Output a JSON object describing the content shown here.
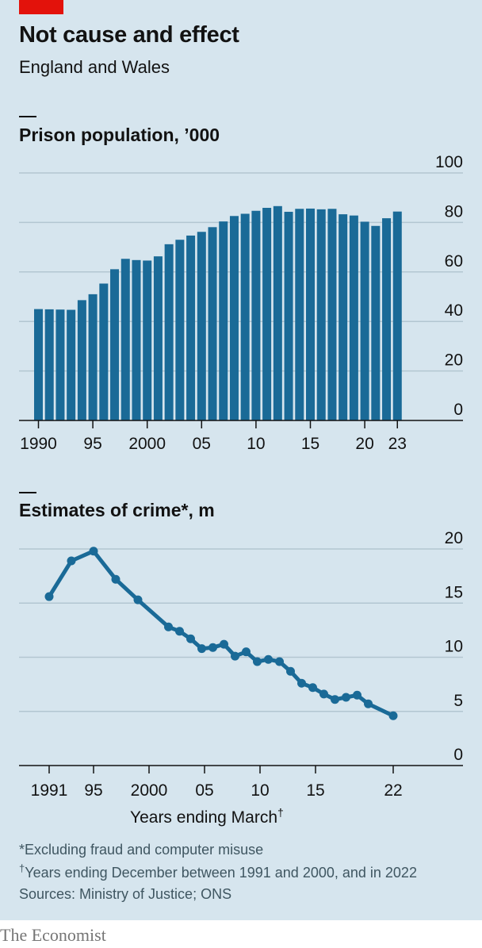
{
  "header": {
    "title": "Not cause and effect",
    "subtitle": "England and Wales"
  },
  "chart_data": [
    {
      "type": "bar",
      "title": "Prison population, ’000",
      "x": [
        1990,
        1991,
        1992,
        1993,
        1994,
        1995,
        1996,
        1997,
        1998,
        1999,
        2000,
        2001,
        2002,
        2003,
        2004,
        2005,
        2006,
        2007,
        2008,
        2009,
        2010,
        2011,
        2012,
        2013,
        2014,
        2015,
        2016,
        2017,
        2018,
        2019,
        2020,
        2021,
        2022,
        2023
      ],
      "values": [
        45.0,
        44.9,
        44.8,
        44.7,
        48.6,
        51.0,
        55.3,
        61.1,
        65.3,
        64.8,
        64.6,
        66.3,
        71.2,
        73.0,
        74.7,
        76.2,
        78.1,
        80.4,
        82.6,
        83.5,
        84.7,
        85.9,
        86.6,
        84.3,
        85.5,
        85.6,
        85.3,
        85.5,
        83.3,
        82.8,
        80.3,
        78.6,
        81.7,
        84.4
      ],
      "tick_labels": [
        "1990",
        "95",
        "2000",
        "05",
        "10",
        "15",
        "20",
        "23"
      ],
      "tick_years": [
        1990,
        1995,
        2000,
        2005,
        2010,
        2015,
        2020,
        2023
      ],
      "y_ticks": [
        "0",
        "20",
        "40",
        "60",
        "80",
        "100"
      ],
      "ylim": [
        0,
        100
      ],
      "grid": true,
      "bar_color": "#1a6a97"
    },
    {
      "type": "line",
      "title": "Estimates of crime*, m",
      "x": [
        1991,
        1993,
        1995,
        1997,
        1999,
        2001.75,
        2002.75,
        2003.75,
        2004.75,
        2005.75,
        2006.75,
        2007.75,
        2008.75,
        2009.75,
        2010.75,
        2011.75,
        2012.75,
        2013.75,
        2014.75,
        2015.75,
        2016.75,
        2017.75,
        2018.75,
        2019.75,
        2022
      ],
      "values": [
        15.6,
        18.9,
        19.8,
        17.2,
        15.3,
        12.8,
        12.4,
        11.7,
        10.8,
        10.9,
        11.2,
        10.1,
        10.5,
        9.6,
        9.8,
        9.6,
        8.7,
        7.6,
        7.2,
        6.6,
        6.1,
        6.3,
        6.5,
        5.7,
        4.6
      ],
      "tick_labels": [
        "1991",
        "95",
        "2000",
        "05",
        "10",
        "15",
        "22"
      ],
      "tick_years": [
        1991,
        1995,
        2000,
        2005,
        2010,
        2015,
        2022
      ],
      "y_ticks": [
        "0",
        "5",
        "10",
        "15",
        "20"
      ],
      "ylim": [
        0,
        20
      ],
      "xlabel": "Years ending March",
      "xlabel_mark": "†",
      "grid": true,
      "line_color": "#1a6a97"
    }
  ],
  "footnotes": {
    "note1": "*Excluding fraud and computer misuse",
    "note2_mark": "†",
    "note2": "Years ending December between 1991 and 2000, and in 2022",
    "sources": "Sources: Ministry of Justice; ONS"
  },
  "brand": "The Economist"
}
